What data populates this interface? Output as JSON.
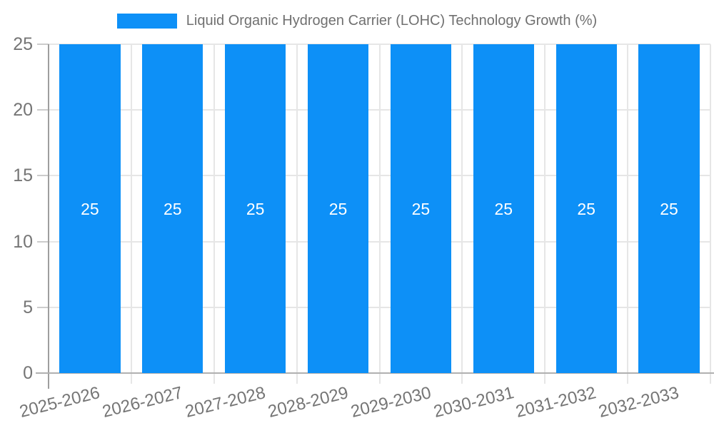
{
  "chart_data": {
    "type": "bar",
    "title": "Liquid Organic Hydrogen Carrier (LOHC) Technology Growth (%)",
    "legend": {
      "label": "Liquid Organic Hydrogen Carrier (LOHC) Technology Growth (%)",
      "position": "top"
    },
    "categories": [
      "2025-2026",
      "2026-2027",
      "2027-2028",
      "2028-2029",
      "2029-2030",
      "2030-2031",
      "2031-2032",
      "2032-2033"
    ],
    "values": [
      25,
      25,
      25,
      25,
      25,
      25,
      25,
      25
    ],
    "bar_labels": [
      "25",
      "25",
      "25",
      "25",
      "25",
      "25",
      "25",
      "25"
    ],
    "xlabel": "",
    "ylabel": "",
    "ylim": [
      0,
      25
    ],
    "yticks": [
      0,
      5,
      10,
      15,
      20,
      25
    ],
    "grid": true,
    "colors": {
      "bar": "#0D90F7",
      "bar_label": "#FFFFFF",
      "grid": "#E6E6E6",
      "axis": "#B0B0B0",
      "y_axis": "#9E9E9E",
      "tick_mark": "#CCCCCC",
      "tick_text": "#757575",
      "legend_text": "#707070",
      "background": "#FFFFFF"
    }
  }
}
